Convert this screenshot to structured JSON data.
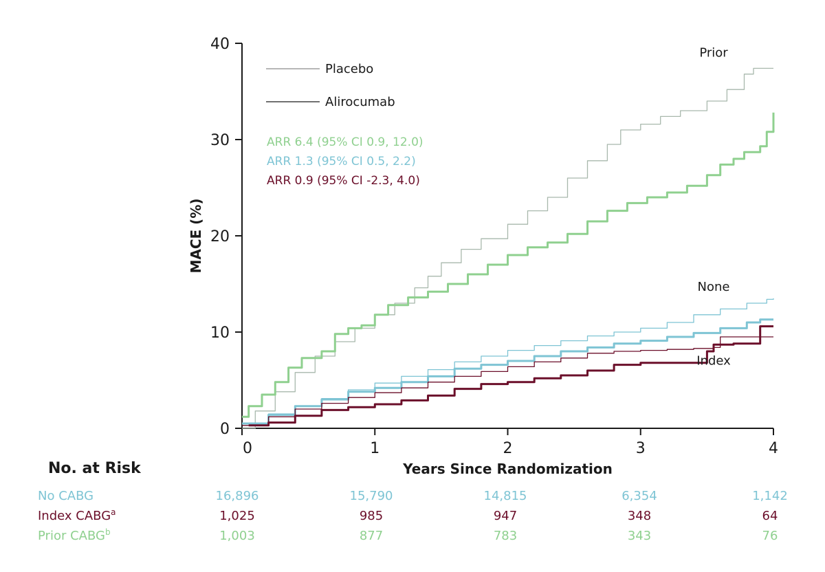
{
  "chart_data": {
    "type": "line",
    "xlabel": "Years Since Randomization",
    "ylabel": "MACE (%)",
    "xlim": [
      0,
      4
    ],
    "ylim": [
      0,
      40
    ],
    "x_ticks": [
      0,
      1,
      2,
      3,
      4
    ],
    "y_ticks": [
      0,
      10,
      20,
      30,
      40
    ],
    "grid": false,
    "legend": {
      "placement": "top-left",
      "entries": [
        {
          "label": "Placebo",
          "style": "thin",
          "color": "#8a8a8a"
        },
        {
          "label": "Alirocumab",
          "style": "thin",
          "color": "#1a1a1a"
        }
      ]
    },
    "annotations": [
      {
        "text": "ARR 6.4 (95% CI 0.9, 12.0)",
        "color": "#8fd08f"
      },
      {
        "text": "ARR 1.3 (95% CI 0.5, 2.2)",
        "color": "#7ec4d4"
      },
      {
        "text": "ARR 0.9 (95% CI -2.3, 4.0)",
        "color": "#6b0f2a"
      }
    ],
    "group_labels": [
      {
        "text": "Prior",
        "x": 3.55,
        "y": 38.6
      },
      {
        "text": "None",
        "x": 3.55,
        "y": 14.3
      },
      {
        "text": "Index",
        "x": 3.55,
        "y": 6.6
      }
    ],
    "series": [
      {
        "group": "Prior",
        "arm": "Placebo",
        "color": "#a8b8ac",
        "width": 1.3,
        "x": [
          0,
          0.1,
          0.25,
          0.4,
          0.55,
          0.7,
          0.85,
          1.0,
          1.15,
          1.3,
          1.4,
          1.5,
          1.65,
          1.8,
          2.0,
          2.15,
          2.3,
          2.45,
          2.6,
          2.75,
          2.85,
          3.0,
          3.15,
          3.3,
          3.5,
          3.65,
          3.78,
          3.85,
          4.0
        ],
        "y": [
          0,
          1.8,
          3.8,
          5.8,
          7.5,
          9.0,
          10.4,
          11.8,
          13.0,
          14.6,
          15.8,
          17.2,
          18.6,
          19.7,
          21.2,
          22.6,
          24.0,
          26.0,
          27.8,
          29.5,
          31.0,
          31.6,
          32.4,
          33.0,
          34.0,
          35.2,
          36.8,
          37.4,
          37.4
        ]
      },
      {
        "group": "Prior",
        "arm": "Alirocumab",
        "color": "#8fd08f",
        "width": 3,
        "x": [
          0,
          0.05,
          0.15,
          0.25,
          0.35,
          0.45,
          0.6,
          0.7,
          0.8,
          0.9,
          1.0,
          1.1,
          1.25,
          1.4,
          1.55,
          1.7,
          1.85,
          2.0,
          2.15,
          2.3,
          2.45,
          2.6,
          2.75,
          2.9,
          3.05,
          3.2,
          3.35,
          3.5,
          3.6,
          3.7,
          3.78,
          3.9,
          3.95,
          4.0
        ],
        "y": [
          1.2,
          2.3,
          3.5,
          4.8,
          6.3,
          7.3,
          8.0,
          9.8,
          10.4,
          10.7,
          11.8,
          12.8,
          13.6,
          14.2,
          15.0,
          16.0,
          17.0,
          18.0,
          18.8,
          19.3,
          20.2,
          21.5,
          22.6,
          23.4,
          24.0,
          24.5,
          25.2,
          26.3,
          27.4,
          28.0,
          28.7,
          29.3,
          30.8,
          32.8
        ]
      },
      {
        "group": "None",
        "arm": "Placebo",
        "color": "#7ec4d4",
        "width": 1.3,
        "x": [
          0,
          0.2,
          0.4,
          0.6,
          0.8,
          1.0,
          1.2,
          1.4,
          1.6,
          1.8,
          2.0,
          2.2,
          2.4,
          2.6,
          2.8,
          3.0,
          3.2,
          3.4,
          3.6,
          3.8,
          3.95,
          4.0
        ],
        "y": [
          0.5,
          1.5,
          2.3,
          3.1,
          4.0,
          4.7,
          5.4,
          6.1,
          6.9,
          7.5,
          8.1,
          8.6,
          9.1,
          9.6,
          10.0,
          10.4,
          11.0,
          11.8,
          12.4,
          13.0,
          13.4,
          13.5
        ]
      },
      {
        "group": "None",
        "arm": "Alirocumab",
        "color": "#7ec4d4",
        "width": 3,
        "x": [
          0,
          0.2,
          0.4,
          0.6,
          0.8,
          1.0,
          1.2,
          1.4,
          1.6,
          1.8,
          2.0,
          2.2,
          2.4,
          2.6,
          2.8,
          3.0,
          3.2,
          3.4,
          3.6,
          3.8,
          3.9,
          4.0
        ],
        "y": [
          0.5,
          1.4,
          2.3,
          3.0,
          3.8,
          4.2,
          4.8,
          5.4,
          6.2,
          6.6,
          7.0,
          7.5,
          8.0,
          8.4,
          8.8,
          9.1,
          9.5,
          9.9,
          10.4,
          11.0,
          11.3,
          11.3
        ]
      },
      {
        "group": "Index",
        "arm": "Placebo",
        "color": "#6b0f2a",
        "width": 1.3,
        "x": [
          0,
          0.2,
          0.4,
          0.6,
          0.8,
          1.0,
          1.2,
          1.4,
          1.6,
          1.8,
          2.0,
          2.2,
          2.4,
          2.6,
          2.8,
          3.0,
          3.2,
          3.4,
          3.55,
          3.6,
          3.8,
          4.0
        ],
        "y": [
          0.3,
          1.2,
          2.0,
          2.6,
          3.2,
          3.7,
          4.2,
          4.8,
          5.4,
          5.9,
          6.4,
          6.9,
          7.3,
          7.8,
          8.0,
          8.1,
          8.2,
          8.3,
          8.4,
          9.5,
          9.5,
          9.5
        ]
      },
      {
        "group": "Index",
        "arm": "Alirocumab",
        "color": "#6b0f2a",
        "width": 3,
        "x": [
          0.05,
          0.2,
          0.4,
          0.6,
          0.8,
          1.0,
          1.2,
          1.4,
          1.6,
          1.8,
          2.0,
          2.2,
          2.4,
          2.6,
          2.8,
          3.0,
          3.2,
          3.34,
          3.5,
          3.55,
          3.7,
          3.85,
          3.9,
          4.0
        ],
        "y": [
          0.3,
          0.6,
          1.3,
          1.9,
          2.2,
          2.5,
          2.9,
          3.4,
          4.1,
          4.6,
          4.8,
          5.2,
          5.5,
          6.0,
          6.6,
          6.8,
          6.8,
          6.8,
          8.0,
          8.7,
          8.8,
          8.8,
          10.6,
          10.6
        ]
      }
    ]
  },
  "risk_table": {
    "title": "No. at Risk",
    "rows": [
      {
        "label": "No CABG",
        "sup": "",
        "color": "#7ec4d4",
        "values": [
          "16,896",
          "15,790",
          "14,815",
          "6,354",
          "1,142"
        ]
      },
      {
        "label": "Index CABG",
        "sup": "a",
        "color": "#6b0f2a",
        "values": [
          "1,025",
          "985",
          "947",
          "348",
          "64"
        ]
      },
      {
        "label": "Prior CABG",
        "sup": "b",
        "color": "#8fd08f",
        "values": [
          "1,003",
          "877",
          "783",
          "343",
          "76"
        ]
      }
    ]
  }
}
